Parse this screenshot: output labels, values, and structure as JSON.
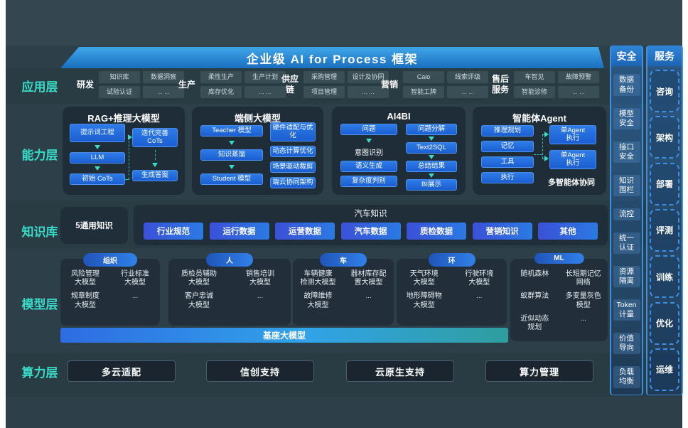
{
  "banner": {
    "title": "企业级 AI for Process 框架"
  },
  "layers": {
    "app": "应用层",
    "capability": "能力层",
    "knowledge": "知识库",
    "model": "模型层",
    "compute": "算力层"
  },
  "app_row": {
    "groups": [
      {
        "name": "研发",
        "cells": [
          "知识库",
          "数据洞察",
          "试验认证",
          "... ..."
        ]
      },
      {
        "name": "生产",
        "cells": [
          "柔性生产",
          "生产计划",
          "库存优化",
          "... ..."
        ]
      },
      {
        "name": "供应\n链",
        "cells": [
          "采购管理",
          "设计及协同",
          "项目管理",
          "... ..."
        ]
      },
      {
        "name": "营销",
        "cells": [
          "Caio",
          "线索评级",
          "智能工牌",
          "... ..."
        ]
      },
      {
        "name": "售后\n服务",
        "cells": [
          "车智见",
          "故障预警",
          "智能诊修",
          "... ..."
        ]
      }
    ]
  },
  "capability_row": {
    "panels": [
      {
        "title": "RAG+推理大模型",
        "left": [
          "提示词工程",
          "LLM",
          "初始 CoTs"
        ],
        "right": [
          "迭代完善\nCoTs",
          "生成答案"
        ]
      },
      {
        "title": "端侧大模型",
        "left": [
          "Teacher 模型",
          "知识蒸馏",
          "Student 模型"
        ],
        "right": [
          "硬件适配与优\n化",
          "动态计算优化",
          "场景驱动裁剪",
          "端云协同架构"
        ]
      },
      {
        "title": "AI4BI",
        "left": [
          "问题",
          "意图识别",
          "语义生成",
          "复杂度判别"
        ],
        "right": [
          "问题分解",
          "Text2SQL",
          "总结结果",
          "BI展示"
        ]
      },
      {
        "title": "智能体Agent",
        "left": [
          "推理规划",
          "记忆",
          "工具",
          "执行"
        ],
        "right": [
          "单Agent\n执行",
          "单Agent\n执行"
        ],
        "note": "多智能体协同"
      }
    ]
  },
  "knowledge_row": {
    "general": "5通用知识",
    "auto_title": "汽车知识",
    "buttons": [
      "行业规范",
      "运行数据",
      "运营数据",
      "汽车数据",
      "质检数据",
      "营销知识",
      "其他"
    ]
  },
  "model_row": {
    "foundation": "基座大模型",
    "groups": [
      {
        "pill": "组织",
        "cells": [
          "风险管理\n大模型",
          "行业标准\n大模型",
          "规章制度\n大模型",
          "..."
        ]
      },
      {
        "pill": "人",
        "cells": [
          "质检员辅助\n大模型",
          "销售培训\n大模型",
          "客户忠诚\n大模型",
          "..."
        ]
      },
      {
        "pill": "车",
        "cells": [
          "车辆健康\n检测大模型",
          "器材库存配\n置大模型",
          "故障维修\n大模型",
          "..."
        ]
      },
      {
        "pill": "环",
        "cells": [
          "天气环境\n大模型",
          "行驶环境\n大模型",
          "地形障碍物\n大模型",
          "..."
        ]
      },
      {
        "pill": "ML",
        "cells": [
          "随机森林",
          "长短期记忆\n网络",
          "蚁群算法",
          "多变量灰色\n模型",
          "近似动态\n规划",
          "..."
        ]
      }
    ]
  },
  "compute_row": {
    "buttons": [
      "多云适配",
      "信创支持",
      "云原生支持",
      "算力管理"
    ]
  },
  "security_panel": {
    "title": "安全",
    "items": [
      "数据\n备份",
      "模型\n安全",
      "接口\n安全",
      "知识\n围栏",
      "流控",
      "统一\n认证",
      "资源\n隔离",
      "Token\n计量",
      "价值\n导向",
      "负载\n均衡"
    ]
  },
  "services_panel": {
    "title": "服务",
    "items": [
      "咨询",
      "架构",
      "部署",
      "评测",
      "训练",
      "优化",
      "运维"
    ]
  },
  "icons": {
    "flow_arrow": "triangle-down-teal",
    "connector_arrow": "triangle-right-teal"
  },
  "colors": {
    "accent_teal": "#38dcc8",
    "flow_arrow_teal": "#2fe0c4",
    "button_blue": "#2b6fe0",
    "banner_blue": "#2f93dc",
    "knowledge_blue": "#3b50d8",
    "board_bg": "#2d4049"
  }
}
